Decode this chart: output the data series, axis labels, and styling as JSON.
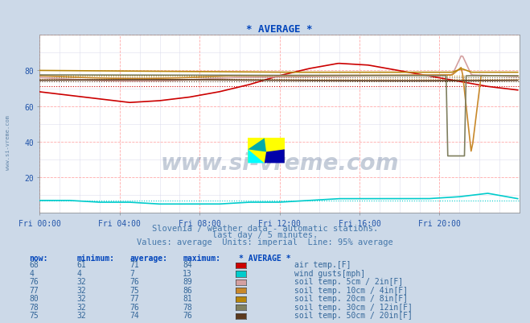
{
  "title": "* AVERAGE *",
  "subtitle1": "Slovenia / weather data - automatic stations.",
  "subtitle2": "last day / 5 minutes.",
  "subtitle3": "Values: average  Units: imperial  Line: 95% average",
  "bg_color": "#ccd9e8",
  "plot_bg_color": "#ffffff",
  "grid_color_major": "#ffaaaa",
  "grid_color_minor": "#ddddee",
  "watermark": "www.si-vreme.com",
  "xlim": [
    0,
    288
  ],
  "ylim": [
    0,
    100
  ],
  "yticks": [
    20,
    40,
    60,
    80
  ],
  "xtick_labels": [
    "Fri 00:00",
    "Fri 04:00",
    "Fri 08:00",
    "Fri 12:00",
    "Fri 16:00",
    "Fri 20:00"
  ],
  "xtick_positions": [
    0,
    48,
    96,
    144,
    192,
    240
  ],
  "series": [
    {
      "color": "#cc0000",
      "avg_line": 71,
      "label": "air temp.[F]",
      "now": 68,
      "min": 61,
      "avg": 71,
      "max": 84
    },
    {
      "color": "#00cccc",
      "avg_line": 7,
      "label": "wind gusts[mph]",
      "now": 4,
      "min": 4,
      "avg": 7,
      "max": 13
    },
    {
      "color": "#d4a0a0",
      "avg_line": 76,
      "label": "soil temp. 5cm / 2in[F]",
      "now": 76,
      "min": 32,
      "avg": 76,
      "max": 89
    },
    {
      "color": "#c8882a",
      "avg_line": 75,
      "label": "soil temp. 10cm / 4in[F]",
      "now": 77,
      "min": 32,
      "avg": 75,
      "max": 86
    },
    {
      "color": "#b8860b",
      "avg_line": 77,
      "label": "soil temp. 20cm / 8in[F]",
      "now": 80,
      "min": 32,
      "avg": 77,
      "max": 81
    },
    {
      "color": "#808060",
      "avg_line": 76,
      "label": "soil temp. 30cm / 12in[F]",
      "now": 78,
      "min": 32,
      "avg": 76,
      "max": 78
    },
    {
      "color": "#5c3a1e",
      "avg_line": 74,
      "label": "soil temp. 50cm / 20in[F]",
      "now": 75,
      "min": 32,
      "avg": 74,
      "max": 76
    }
  ],
  "legend_box_colors": [
    "#cc0000",
    "#00cccc",
    "#d4a0a0",
    "#c8882a",
    "#b8860b",
    "#808060",
    "#5c3a1e"
  ]
}
